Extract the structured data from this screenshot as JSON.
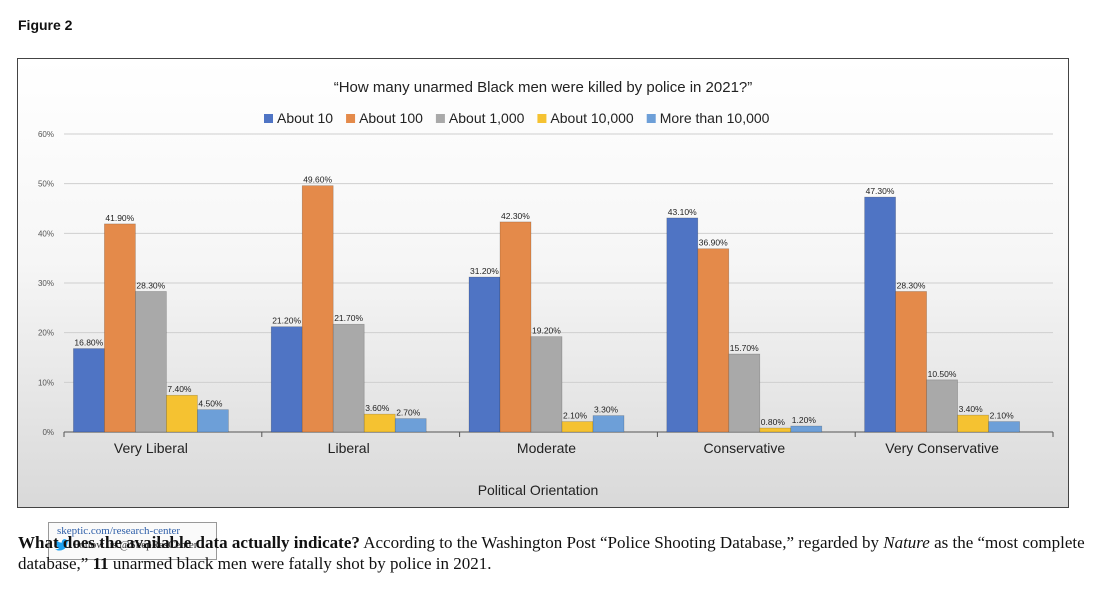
{
  "figure_label": "Figure 2",
  "chart_data": {
    "type": "bar",
    "title": "“How many unarmed Black men were killed by police in 2021?”",
    "xlabel": "Political Orientation",
    "ylabel": "",
    "ylim": [
      0,
      60
    ],
    "yticks": [
      "0%",
      "10%",
      "20%",
      "30%",
      "40%",
      "50%",
      "60%"
    ],
    "grid": true,
    "legend_position": "top",
    "categories": [
      "Very Liberal",
      "Liberal",
      "Moderate",
      "Conservative",
      "Very Conservative"
    ],
    "series": [
      {
        "name": "About 10",
        "color": "#4f74c4",
        "values": [
          16.8,
          21.2,
          31.2,
          43.1,
          47.3
        ],
        "labels": [
          "16.80%",
          "21.20%",
          "31.20%",
          "43.10%",
          "47.30%"
        ]
      },
      {
        "name": "About 100",
        "color": "#e48a4a",
        "values": [
          41.9,
          49.6,
          42.3,
          36.9,
          28.3
        ],
        "labels": [
          "41.90%",
          "49.60%",
          "42.30%",
          "36.90%",
          "28.30%"
        ]
      },
      {
        "name": "About 1,000",
        "color": "#a9a9a9",
        "values": [
          28.3,
          21.7,
          19.2,
          15.7,
          10.5
        ],
        "labels": [
          "28.30%",
          "21.70%",
          "19.20%",
          "15.70%",
          "10.50%"
        ]
      },
      {
        "name": "About 10,000",
        "color": "#f5c231",
        "values": [
          7.4,
          3.6,
          2.1,
          0.8,
          3.4
        ],
        "labels": [
          "7.40%",
          "3.60%",
          "2.10%",
          "0.80%",
          "3.40%"
        ]
      },
      {
        "name": "More than 10,000",
        "color": "#6d9fd8",
        "values": [
          4.5,
          2.7,
          3.3,
          1.2,
          2.1
        ],
        "labels": [
          "4.50%",
          "2.70%",
          "3.30%",
          "1.20%",
          "2.10%"
        ]
      }
    ]
  },
  "credit": {
    "url": "skeptic.com/research-center",
    "follow": "Follow us @SkepResCenter"
  },
  "caption": {
    "lead_bold": "What does the available data actually indicate?",
    "text_1": " According to the Washington Post “Police Shooting Database,” regarded by ",
    "italic": "Nature",
    "text_2": " as the “most complete database,” ",
    "bold_number": "11",
    "text_3": " unarmed black men were fatally shot by police in 2021."
  },
  "colors": {
    "grid": "#cfcfcf",
    "axis": "#555555"
  }
}
